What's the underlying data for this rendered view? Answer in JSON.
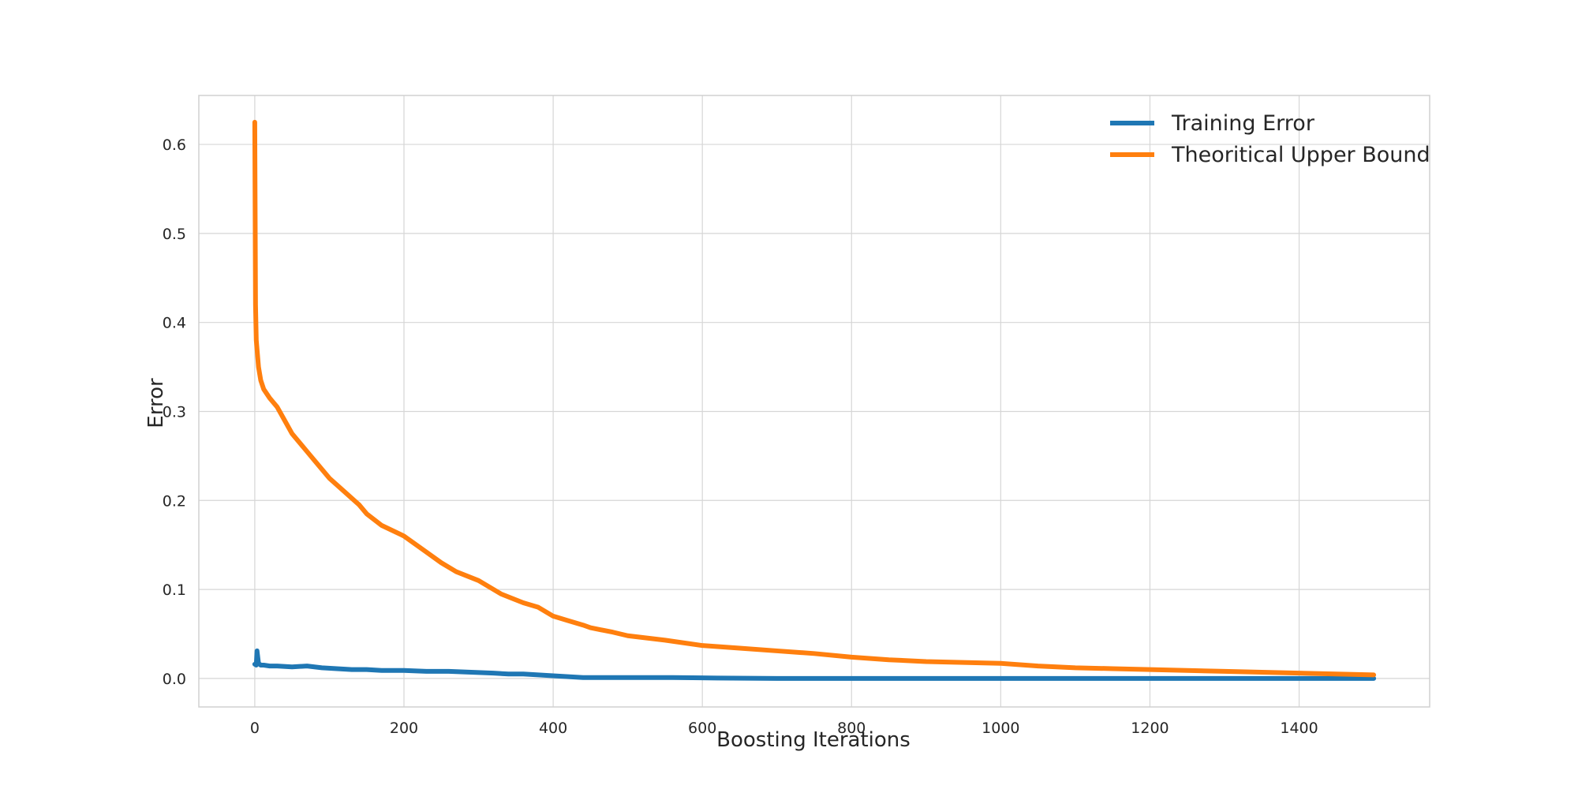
{
  "chart_data": {
    "type": "line",
    "title": "",
    "xlabel": "Boosting Iterations",
    "ylabel": "Error",
    "xlim": [
      -75,
      1575
    ],
    "ylim": [
      -0.032,
      0.655
    ],
    "xticks": [
      0,
      200,
      400,
      600,
      800,
      1000,
      1200,
      1400
    ],
    "yticks": [
      0.0,
      0.1,
      0.2,
      0.3,
      0.4,
      0.5,
      0.6
    ],
    "ytick_labels": [
      "0.0",
      "0.1",
      "0.2",
      "0.3",
      "0.4",
      "0.5",
      "0.6"
    ],
    "grid": true,
    "legend_position": "top-right",
    "series": [
      {
        "name": "Training Error",
        "color": "#1f77b4",
        "x": [
          0,
          2,
          3,
          5,
          8,
          12,
          20,
          30,
          50,
          70,
          90,
          110,
          130,
          150,
          170,
          200,
          230,
          260,
          290,
          320,
          340,
          360,
          380,
          400,
          420,
          440,
          500,
          560,
          620,
          700,
          800,
          900,
          1000,
          1200,
          1400,
          1500
        ],
        "y": [
          0.016,
          0.015,
          0.031,
          0.017,
          0.015,
          0.015,
          0.014,
          0.014,
          0.013,
          0.014,
          0.012,
          0.011,
          0.01,
          0.01,
          0.009,
          0.009,
          0.008,
          0.008,
          0.007,
          0.006,
          0.005,
          0.005,
          0.004,
          0.003,
          0.002,
          0.001,
          0.001,
          0.001,
          0.0005,
          0.0,
          0.0,
          0.0,
          0.0,
          0.0,
          0.0,
          0.0
        ]
      },
      {
        "name": "Theoritical Upper Bound",
        "color": "#ff7f0e",
        "x": [
          0,
          1,
          2,
          3,
          5,
          8,
          12,
          20,
          30,
          40,
          50,
          60,
          70,
          80,
          90,
          100,
          120,
          140,
          150,
          170,
          200,
          220,
          230,
          250,
          270,
          300,
          320,
          330,
          360,
          380,
          400,
          420,
          440,
          450,
          480,
          500,
          550,
          600,
          650,
          700,
          750,
          800,
          850,
          900,
          1000,
          1050,
          1100,
          1150,
          1200,
          1300,
          1400,
          1500
        ],
        "y": [
          0.625,
          0.42,
          0.38,
          0.37,
          0.35,
          0.335,
          0.325,
          0.315,
          0.305,
          0.29,
          0.275,
          0.265,
          0.255,
          0.245,
          0.235,
          0.225,
          0.21,
          0.195,
          0.185,
          0.172,
          0.16,
          0.148,
          0.142,
          0.13,
          0.12,
          0.11,
          0.1,
          0.095,
          0.085,
          0.08,
          0.07,
          0.065,
          0.06,
          0.057,
          0.052,
          0.048,
          0.043,
          0.037,
          0.034,
          0.031,
          0.028,
          0.024,
          0.021,
          0.019,
          0.017,
          0.014,
          0.012,
          0.011,
          0.01,
          0.008,
          0.006,
          0.004
        ]
      }
    ]
  }
}
